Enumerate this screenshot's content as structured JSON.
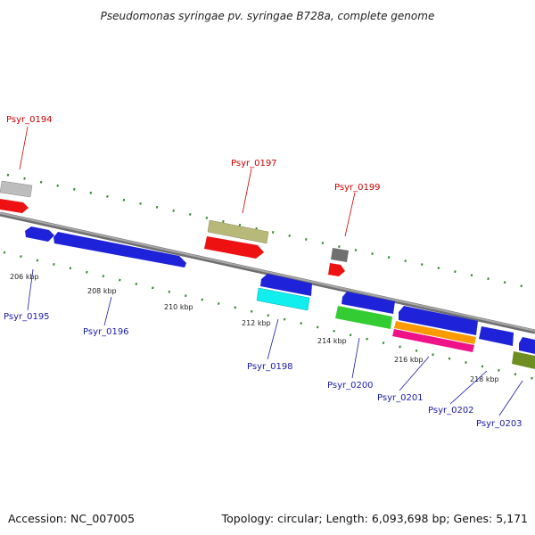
{
  "title": "Pseudomonas syringae pv. syringae B728a, complete genome",
  "footer": {
    "accession": "Accession: NC_007005",
    "topology": "Topology: circular; Length: 6,093,698 bp; Genes: 5,171"
  },
  "colors": {
    "backbone": "#8a8a8a",
    "tick": "#2e8b2e",
    "label_top": "#cc0000",
    "label_bottom": "#1a1aaa",
    "blue": "#1e22d8",
    "red": "#ee1111",
    "gray": "#bdbdbd",
    "olive": "#b8b878",
    "darkgray": "#707070",
    "cyan": "#11eeee",
    "green": "#33cc33",
    "orange": "#ff9900",
    "magenta": "#ee1188",
    "darkolive": "#6e8e22"
  },
  "scale_labels": [
    "206 kbp",
    "208 kbp",
    "210 kbp",
    "212 kbp",
    "214 kbp",
    "216 kbp",
    "218 kbp"
  ],
  "gene_labels": [
    {
      "id": "Psyr_0194",
      "side": "top"
    },
    {
      "id": "Psyr_0195",
      "side": "bottom"
    },
    {
      "id": "Psyr_0196",
      "side": "bottom"
    },
    {
      "id": "Psyr_0197",
      "side": "top"
    },
    {
      "id": "Psyr_0198",
      "side": "bottom"
    },
    {
      "id": "Psyr_0199",
      "side": "top"
    },
    {
      "id": "Psyr_0200",
      "side": "bottom"
    },
    {
      "id": "Psyr_0201",
      "side": "bottom"
    },
    {
      "id": "Psyr_0202",
      "side": "bottom"
    },
    {
      "id": "Psyr_0203",
      "side": "bottom"
    }
  ]
}
